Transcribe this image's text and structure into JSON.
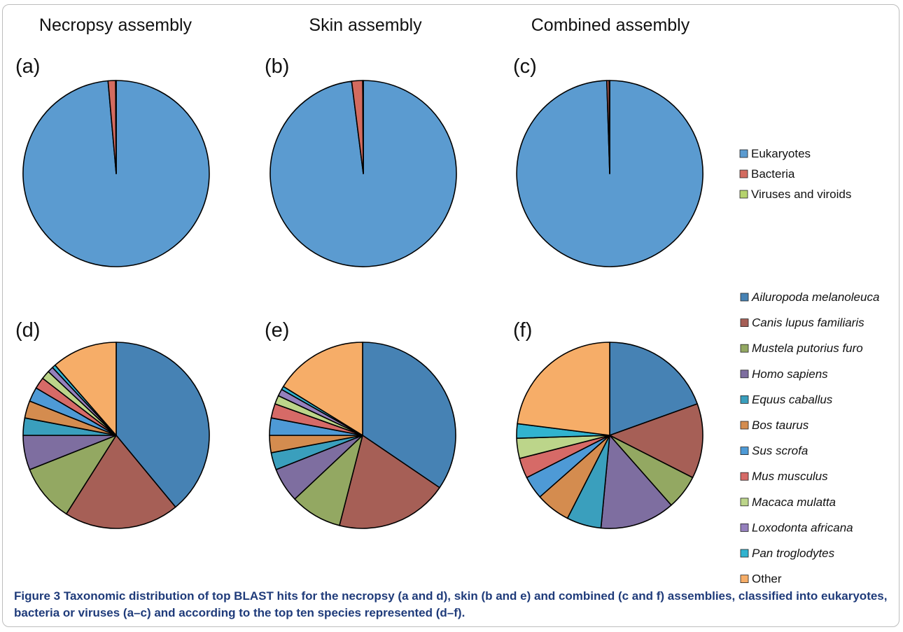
{
  "column_titles": [
    "Necropsy assembly",
    "Skin assembly",
    "Combined assembly"
  ],
  "legend_top": [
    {
      "label": "Eukaryotes",
      "color": "#5b9bd0"
    },
    {
      "label": "Bacteria",
      "color": "#d36b5f"
    },
    {
      "label": "Viruses and viroids",
      "color": "#b5d36d"
    }
  ],
  "legend_bottom": [
    {
      "label": "Ailuropoda melanoleuca",
      "color": "#4682b4"
    },
    {
      "label": "Canis lupus familiaris",
      "color": "#a65f56"
    },
    {
      "label": "Mustela putorius furo",
      "color": "#93a862"
    },
    {
      "label": "Homo sapiens",
      "color": "#7e6ea0"
    },
    {
      "label": "Equus caballus",
      "color": "#3a9fbd"
    },
    {
      "label": "Bos taurus",
      "color": "#d48c4f"
    },
    {
      "label": "Sus scrofa",
      "color": "#4e9ad6"
    },
    {
      "label": "Mus musculus",
      "color": "#d66a67"
    },
    {
      "label": "Macaca mulatta",
      "color": "#bcd58a"
    },
    {
      "label": "Loxodonta africana",
      "color": "#9580bd"
    },
    {
      "label": "Pan troglodytes",
      "color": "#31b3cf"
    },
    {
      "label": "Other",
      "color": "#f6ad68"
    }
  ],
  "caption": {
    "label": "Figure 3",
    "text": " Taxonomic distribution of top BLAST hits for the necropsy (a and d), skin (b and e) and combined (c and f) assemblies, classified into eukaryotes, bacteria or viruses (a–c) and according to the top ten species represented (d–f)."
  },
  "chart_data": [
    {
      "type": "pie",
      "panel": "(a)",
      "title": "Necropsy assembly",
      "categories": [
        "Eukaryotes",
        "Bacteria",
        "Viruses and viroids"
      ],
      "values": [
        98.6,
        1.3,
        0.1
      ]
    },
    {
      "type": "pie",
      "panel": "(b)",
      "title": "Skin assembly",
      "categories": [
        "Eukaryotes",
        "Bacteria",
        "Viruses and viroids"
      ],
      "values": [
        98.0,
        1.9,
        0.1
      ]
    },
    {
      "type": "pie",
      "panel": "(c)",
      "title": "Combined assembly",
      "categories": [
        "Eukaryotes",
        "Bacteria",
        "Viruses and viroids"
      ],
      "values": [
        99.5,
        0.4,
        0.1
      ]
    },
    {
      "type": "pie",
      "panel": "(d)",
      "categories": [
        "Ailuropoda melanoleuca",
        "Canis lupus familiaris",
        "Mustela putorius furo",
        "Homo sapiens",
        "Equus caballus",
        "Bos taurus",
        "Sus scrofa",
        "Mus musculus",
        "Macaca mulatta",
        "Loxodonta africana",
        "Pan troglodytes",
        "Other"
      ],
      "values": [
        39,
        20,
        10,
        6,
        3,
        3,
        2.5,
        2,
        1.5,
        1,
        0.6,
        11.4
      ]
    },
    {
      "type": "pie",
      "panel": "(e)",
      "categories": [
        "Ailuropoda melanoleuca",
        "Canis lupus familiaris",
        "Mustela putorius furo",
        "Homo sapiens",
        "Equus caballus",
        "Bos taurus",
        "Sus scrofa",
        "Mus musculus",
        "Macaca mulatta",
        "Loxodonta africana",
        "Pan troglodytes",
        "Other"
      ],
      "values": [
        34.5,
        19.5,
        9,
        6,
        3,
        3,
        3,
        2.5,
        1.5,
        1.2,
        0.6,
        16.2
      ]
    },
    {
      "type": "pie",
      "panel": "(f)",
      "categories": [
        "Ailuropoda melanoleuca",
        "Canis lupus familiaris",
        "Mustela putorius furo",
        "Homo sapiens",
        "Equus caballus",
        "Bos taurus",
        "Sus scrofa",
        "Mus musculus",
        "Macaca mulatta",
        "Loxodonta africana",
        "Pan troglodytes",
        "Other"
      ],
      "values": [
        19.5,
        13,
        6,
        13,
        6,
        6,
        4,
        3.5,
        3.5,
        0,
        2.5,
        23
      ]
    }
  ]
}
